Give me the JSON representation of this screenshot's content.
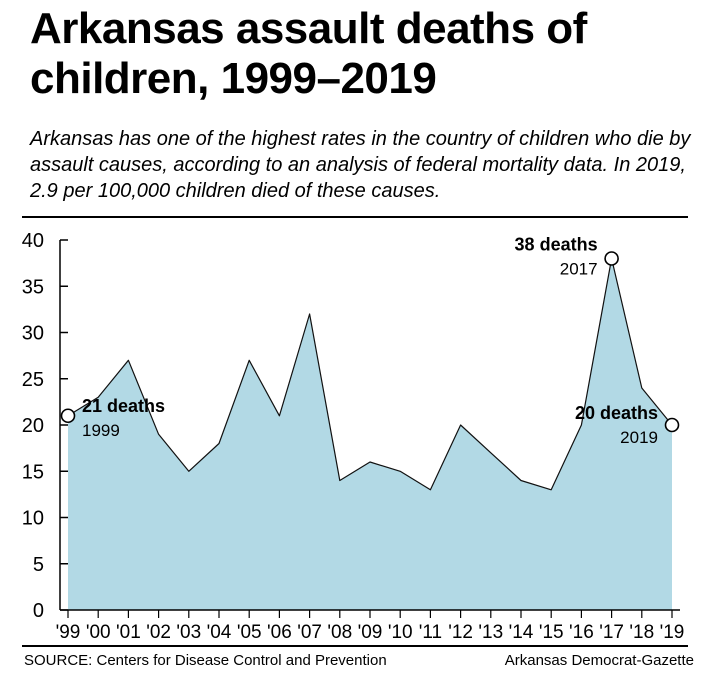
{
  "title": "Arkansas assault deaths of children, 1999–2019",
  "subtitle": "Arkansas has one of the highest rates in the country of children who die by assault causes, according to an analysis of federal mortality data. In 2019, 2.9 per 100,000 children died of these causes.",
  "source": "SOURCE: Centers for Disease Control and Prevention",
  "credit": "Arkansas Democrat-Gazette",
  "chart_data": {
    "type": "area",
    "title": "Arkansas assault deaths of children, 1999–2019",
    "xlabel": "",
    "ylabel": "",
    "ylim": [
      0,
      40
    ],
    "yticks": [
      0,
      5,
      10,
      15,
      20,
      25,
      30,
      35,
      40
    ],
    "categories": [
      "'99",
      "'00",
      "'01",
      "'02",
      "'03",
      "'04",
      "'05",
      "'06",
      "'07",
      "'08",
      "'09",
      "'10",
      "'11",
      "'12",
      "'13",
      "'14",
      "'15",
      "'16",
      "'17",
      "'18",
      "'19"
    ],
    "values": [
      21,
      23,
      27,
      19,
      15,
      18,
      27,
      21,
      32,
      14,
      16,
      15,
      13,
      20,
      17,
      14,
      13,
      20,
      38,
      24,
      20
    ],
    "grid": false,
    "fill_color": "#b2d9e5",
    "line_color": "#111111",
    "annotations": [
      {
        "index": 0,
        "value_label": "21 deaths",
        "year_label": "1999",
        "side": "right"
      },
      {
        "index": 18,
        "value_label": "38 deaths",
        "year_label": "2017",
        "side": "left"
      },
      {
        "index": 20,
        "value_label": "20 deaths",
        "year_label": "2019",
        "side": "left"
      }
    ]
  }
}
